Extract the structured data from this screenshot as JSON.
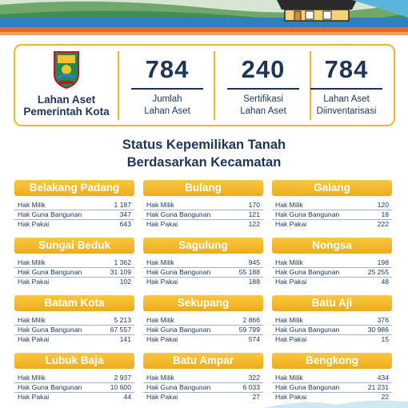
{
  "summary": {
    "owner_label_line1": "Lahan Aset",
    "owner_label_line2": "Pemerintah Kota",
    "stats": [
      {
        "value": "784",
        "label_line1": "Jumlah",
        "label_line2": "Lahan Aset"
      },
      {
        "value": "240",
        "label_line1": "Sertifikasi",
        "label_line2": "Lahan Aset"
      },
      {
        "value": "784",
        "label_line1": "Lahan Aset",
        "label_line2": "Diinventarisasi"
      }
    ]
  },
  "heading": {
    "line1": "Status Kepemilikan Tanah",
    "line2": "Berdasarkan Kecamatan"
  },
  "row_labels": {
    "milik": "Hak Milik",
    "guna": "Hak Guna Bangunan",
    "pakai": "Hak Pakai"
  },
  "districts": [
    {
      "name": "Belakang Padang",
      "milik": "1 187",
      "guna": "347",
      "pakai": "643"
    },
    {
      "name": "Bulang",
      "milik": "170",
      "guna": "121",
      "pakai": "122"
    },
    {
      "name": "Galang",
      "milik": "120",
      "guna": "18",
      "pakai": "222"
    },
    {
      "name": "Sungai Beduk",
      "milik": "1 362",
      "guna": "31 109",
      "pakai": "102"
    },
    {
      "name": "Sagulung",
      "milik": "945",
      "guna": "55 188",
      "pakai": "188"
    },
    {
      "name": "Nongsa",
      "milik": "198",
      "guna": "25 255",
      "pakai": "48"
    },
    {
      "name": "Batam Kota",
      "milik": "5 213",
      "guna": "67 557",
      "pakai": "141"
    },
    {
      "name": "Sekupang",
      "milik": "2 866",
      "guna": "59 799",
      "pakai": "574"
    },
    {
      "name": "Batu Aji",
      "milik": "376",
      "guna": "30 986",
      "pakai": "15"
    },
    {
      "name": "Lubuk Baja",
      "milik": "2 937",
      "guna": "10 600",
      "pakai": "44"
    },
    {
      "name": "Batu Ampar",
      "milik": "322",
      "guna": "6 033",
      "pakai": "27"
    },
    {
      "name": "Bengkong",
      "milik": "434",
      "guna": "21 231",
      "pakai": "22"
    }
  ],
  "colors": {
    "accent": "#f2b42a",
    "text": "#1d3557",
    "banner_blue": "#2f7fc1",
    "banner_orange": "#e86a2a"
  }
}
